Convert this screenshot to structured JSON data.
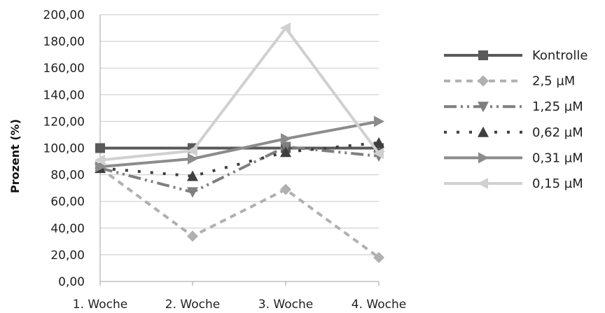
{
  "chart_data": {
    "type": "line",
    "title": "",
    "xlabel": "",
    "ylabel": "Prozent (%)",
    "categories": [
      "1. Woche",
      "2. Woche",
      "3. Woche",
      "4. Woche"
    ],
    "ylim": [
      0,
      200
    ],
    "yticks": [
      "0,00",
      "20,00",
      "40,00",
      "60,00",
      "80,00",
      "100,00",
      "120,00",
      "140,00",
      "160,00",
      "180,00",
      "200,00"
    ],
    "grid": true,
    "legend_position": "right",
    "series": [
      {
        "name": "Kontrolle",
        "values": [
          100,
          100,
          100,
          100
        ],
        "color": "#595959",
        "dash": "",
        "marker": "square"
      },
      {
        "name": "2,5 µM",
        "values": [
          85,
          34,
          69,
          18
        ],
        "color": "#b0b0b0",
        "dash": "9 7",
        "marker": "diamond"
      },
      {
        "name": "1,25 µM",
        "values": [
          85,
          67,
          101,
          94
        ],
        "color": "#7f7f7f",
        "dash": "18 6 3 6 3 6",
        "marker": "triangle-down"
      },
      {
        "name": "0,62 µM",
        "values": [
          85,
          79,
          97,
          104
        ],
        "color": "#3f3f3f",
        "dash": "4 14",
        "marker": "triangle-up"
      },
      {
        "name": "0,31 µM",
        "values": [
          86,
          92,
          107,
          120
        ],
        "color": "#8c8c8c",
        "dash": "",
        "marker": "triangle-right"
      },
      {
        "name": "0,15 µM",
        "values": [
          91,
          98,
          190,
          96
        ],
        "color": "#d0d0d0",
        "dash": "",
        "marker": "triangle-left"
      }
    ]
  }
}
